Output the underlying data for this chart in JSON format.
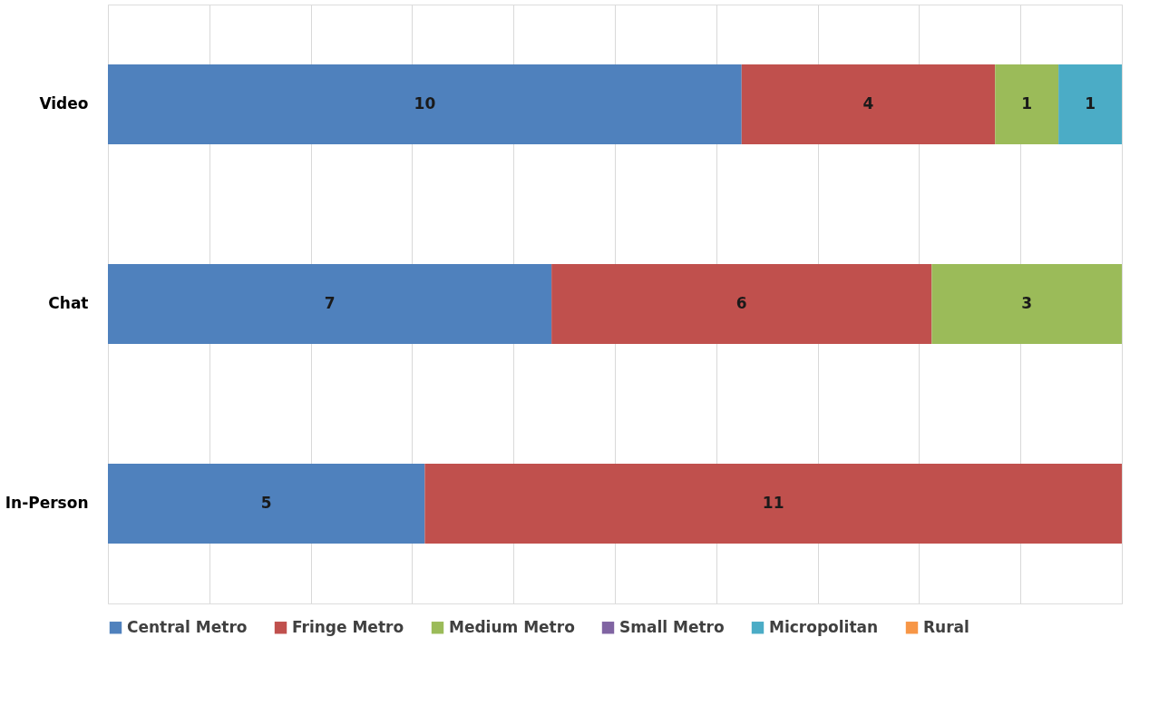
{
  "chart_data": {
    "type": "bar",
    "orientation": "horizontal",
    "stacked": true,
    "data_labels": true,
    "grid": "x",
    "legend": "bottom",
    "tick_labels": "y",
    "categories": [
      "Video",
      "Chat",
      "In-Person"
    ],
    "xlim": [
      0,
      16
    ],
    "xticks": [
      {
        "value": 0,
        "label": null
      },
      {
        "value": 1.6,
        "label": null
      },
      {
        "value": 3.2,
        "label": null
      },
      {
        "value": 4.8,
        "label": null
      },
      {
        "value": 6.4,
        "label": null
      },
      {
        "value": 8,
        "label": null
      },
      {
        "value": 9.6,
        "label": null
      },
      {
        "value": 11.2,
        "label": null
      },
      {
        "value": 12.8,
        "label": null
      },
      {
        "value": 14.4,
        "label": null
      },
      {
        "value": 16,
        "label": null
      }
    ],
    "series": [
      {
        "name": "Central Metro",
        "color": "#4f81bd",
        "values": [
          10,
          7,
          5
        ]
      },
      {
        "name": "Fringe Metro",
        "color": "#c0504d",
        "values": [
          4,
          6,
          11
        ]
      },
      {
        "name": "Medium Metro",
        "color": "#9bbb59",
        "values": [
          1,
          3,
          null
        ]
      },
      {
        "name": "Small Metro",
        "color": "#8064a2",
        "values": [
          null,
          null,
          null
        ]
      },
      {
        "name": "Micropolitan",
        "color": "#4bacc6",
        "values": [
          1,
          null,
          null
        ]
      },
      {
        "name": "Rural",
        "color": "#f79646",
        "values": [
          null,
          null,
          null
        ]
      }
    ]
  }
}
